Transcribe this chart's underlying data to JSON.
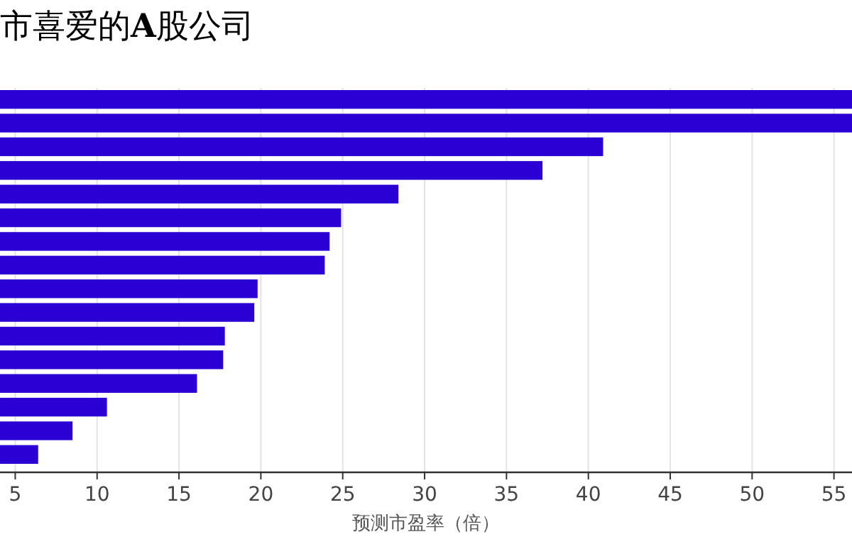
{
  "chart_data": {
    "type": "bar",
    "orientation": "horizontal",
    "title": "市喜爱的**A**股公司",
    "xlabel": "预测市盈率（倍）",
    "categories": [
      null,
      null,
      null,
      null,
      null,
      null,
      null,
      null,
      null,
      null,
      null,
      null,
      null,
      null,
      null,
      null
    ],
    "values": [
      56.1,
      56.1,
      40.9,
      37.2,
      28.4,
      24.9,
      24.2,
      23.9,
      19.8,
      19.6,
      17.8,
      17.7,
      16.1,
      10.6,
      8.5,
      6.4
    ],
    "color": "#2a00d4",
    "xlim": [
      4.07,
      56.1
    ],
    "xticks": [
      5,
      10,
      15,
      20,
      25,
      30,
      35,
      40,
      45,
      50,
      55
    ],
    "grid": "x"
  }
}
